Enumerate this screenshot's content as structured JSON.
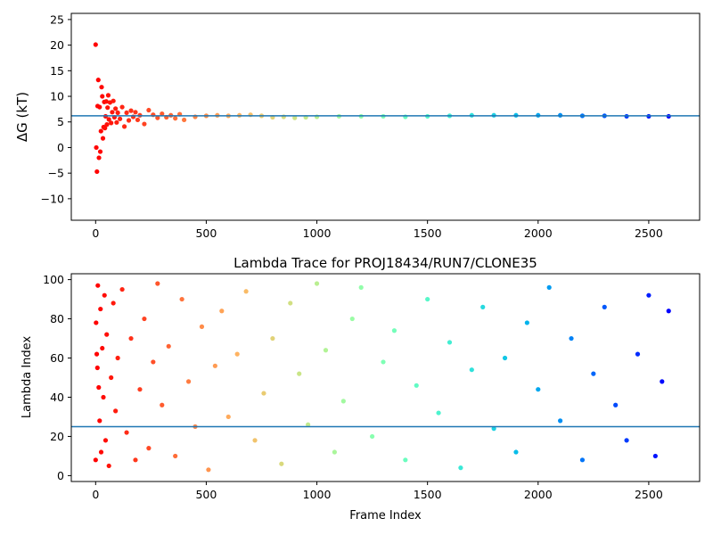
{
  "chart_data": [
    {
      "type": "scatter",
      "title": "",
      "xlabel": "",
      "ylabel": "ΔG (kT)",
      "xlim": [
        -110,
        2730
      ],
      "ylim": [
        -14.2,
        26.2
      ],
      "xticks": [
        0,
        500,
        1000,
        1500,
        2000,
        2500
      ],
      "yticks": [
        -10,
        -5,
        0,
        5,
        10,
        15,
        20,
        25
      ],
      "grid": false,
      "legend": "none",
      "colormap": "rainbow",
      "reference_line": {
        "y": 6.2,
        "color": "#1f77b4"
      },
      "series": [
        {
          "x": [
            0,
            3,
            6,
            9,
            12,
            15,
            18,
            21,
            24,
            27,
            30,
            33,
            36,
            39,
            42,
            45,
            48,
            51,
            54,
            57,
            60,
            65,
            70,
            75,
            80,
            85,
            90,
            95,
            100,
            110,
            120,
            130,
            140,
            150,
            160,
            170,
            180,
            190,
            200,
            220,
            240,
            260,
            280,
            300,
            320,
            340,
            360,
            380,
            400,
            450,
            500,
            550,
            600,
            650,
            700,
            750,
            800,
            850,
            900,
            950,
            1000,
            1100,
            1200,
            1300,
            1400,
            1500,
            1600,
            1700,
            1800,
            1900,
            2000,
            2100,
            2200,
            2300,
            2400,
            2500,
            2590
          ],
          "y": [
            20.1,
            0,
            -4.7,
            8.1,
            13.2,
            -2.0,
            7.9,
            -0.8,
            3.2,
            11.8,
            10.0,
            1.8,
            4.0,
            8.9,
            3.8,
            6.1,
            9.0,
            4.5,
            7.8,
            10.2,
            5.5,
            8.8,
            4.8,
            6.9,
            9.1,
            5.9,
            7.6,
            4.9,
            6.8,
            5.6,
            7.9,
            4.1,
            6.8,
            5.3,
            7.2,
            6.0,
            6.9,
            5.4,
            6.3,
            4.6,
            7.3,
            6.4,
            5.8,
            6.6,
            5.9,
            6.3,
            5.7,
            6.5,
            5.4,
            6.0,
            6.2,
            6.3,
            6.2,
            6.3,
            6.4,
            6.2,
            5.9,
            6.0,
            5.8,
            5.9,
            6.0,
            6.1,
            6.1,
            6.1,
            6.0,
            6.1,
            6.2,
            6.3,
            6.3,
            6.3,
            6.3,
            6.3,
            6.2,
            6.2,
            6.1,
            6.1,
            6.1
          ]
        }
      ]
    },
    {
      "type": "scatter",
      "title": "Lambda Trace for PROJ18434/RUN7/CLONE35",
      "xlabel": "Frame Index",
      "ylabel": "Lambda Index",
      "xlim": [
        -110,
        2730
      ],
      "ylim": [
        -3,
        103
      ],
      "xticks": [
        0,
        500,
        1000,
        1500,
        2000,
        2500
      ],
      "yticks": [
        0,
        20,
        40,
        60,
        80,
        100
      ],
      "grid": false,
      "legend": "none",
      "colormap": "rainbow",
      "reference_line": {
        "y": 25,
        "color": "#1f77b4"
      },
      "series": [
        {
          "x": [
            0,
            2,
            5,
            8,
            10,
            14,
            18,
            22,
            25,
            30,
            35,
            40,
            45,
            50,
            60,
            70,
            80,
            90,
            100,
            120,
            140,
            160,
            180,
            200,
            220,
            240,
            260,
            280,
            300,
            330,
            360,
            390,
            420,
            450,
            480,
            510,
            540,
            570,
            600,
            640,
            680,
            720,
            760,
            800,
            840,
            880,
            920,
            960,
            1000,
            1040,
            1080,
            1120,
            1160,
            1200,
            1250,
            1300,
            1350,
            1400,
            1450,
            1500,
            1550,
            1600,
            1650,
            1700,
            1750,
            1800,
            1850,
            1900,
            1950,
            2000,
            2050,
            2100,
            2150,
            2200,
            2250,
            2300,
            2350,
            2400,
            2450,
            2500,
            2530,
            2560,
            2590
          ],
          "y": [
            8,
            78,
            62,
            55,
            97,
            45,
            28,
            85,
            12,
            65,
            40,
            92,
            18,
            72,
            5,
            50,
            88,
            33,
            60,
            95,
            22,
            70,
            8,
            44,
            80,
            14,
            58,
            98,
            36,
            66,
            10,
            90,
            48,
            25,
            76,
            3,
            56,
            84,
            30,
            62,
            94,
            18,
            42,
            70,
            6,
            88,
            52,
            26,
            98,
            64,
            12,
            38,
            80,
            96,
            20,
            58,
            74,
            8,
            46,
            90,
            32,
            68,
            4,
            54,
            86,
            24,
            60,
            12,
            78,
            44,
            96,
            28,
            70,
            8,
            52,
            86,
            36,
            18,
            62,
            92,
            10,
            48,
            84
          ]
        }
      ]
    }
  ]
}
